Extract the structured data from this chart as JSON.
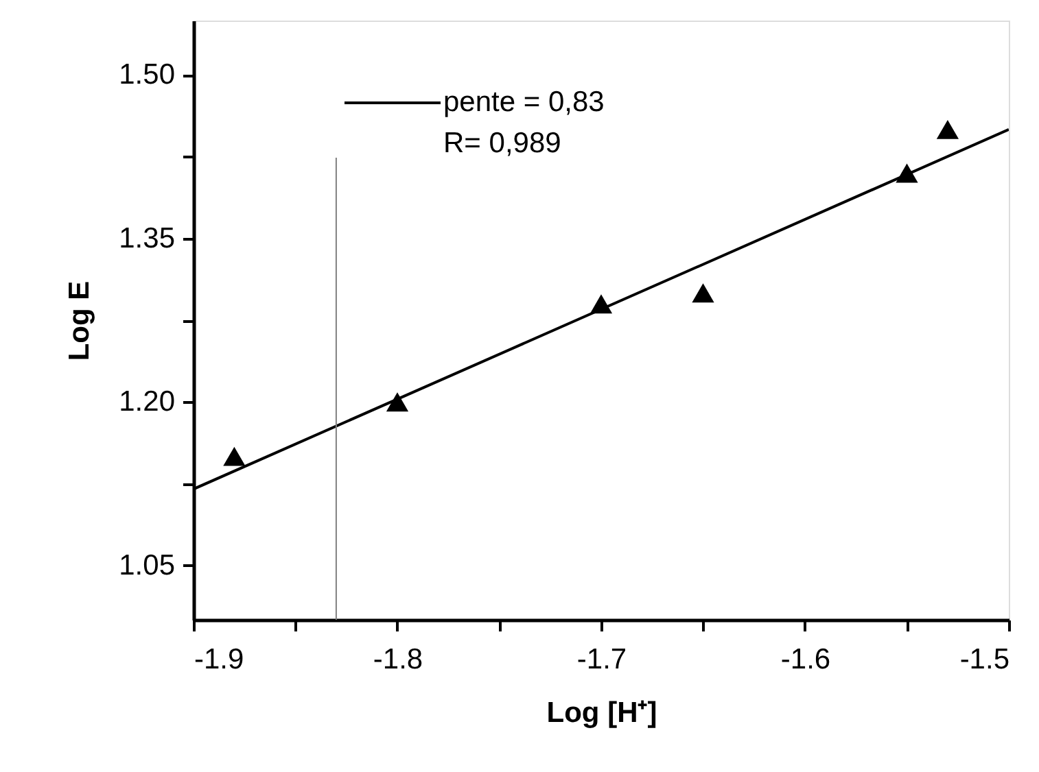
{
  "chart_data": {
    "type": "scatter",
    "xlabel": "Log [H⁺]",
    "ylabel": "Log E",
    "series": [
      {
        "color": "#000000",
        "marker": "triangle",
        "x": [
          -1.88,
          -1.8,
          -1.7,
          -1.65,
          -1.55,
          -1.53
        ],
        "values": [
          1.15,
          1.2,
          1.29,
          1.3,
          1.41,
          1.45
        ]
      },
      {
        "type": "line",
        "name": "pente = 0,83",
        "color": "#000000",
        "line_style": "solid",
        "marker": "none",
        "x": [
          -1.9,
          -1.5
        ],
        "values": [
          1.12,
          1.45
        ]
      }
    ],
    "annotations": [
      "R= 0,989"
    ],
    "ref_lines": [
      {
        "axis": "x",
        "value": -1.83,
        "label": null,
        "color": "#808080"
      }
    ],
    "xlim": [
      -1.9,
      -1.5
    ],
    "xticks": [
      -1.9,
      {
        "value": -1.85,
        "label": null
      },
      -1.8,
      {
        "value": -1.75,
        "label": null
      },
      -1.7,
      {
        "value": -1.65,
        "label": null
      },
      -1.6,
      {
        "value": -1.55,
        "label": null
      },
      -1.5
    ],
    "ylim": [
      1.0,
      1.55
    ],
    "yticks": [
      1.05,
      {
        "value": 1.125,
        "label": null
      },
      {
        "value": 1.2,
        "label": "1.20"
      },
      {
        "value": 1.275,
        "label": null
      },
      1.35,
      {
        "value": 1.425,
        "label": null
      },
      {
        "value": 1.5,
        "label": "1.50"
      }
    ],
    "grid": false,
    "legend": "top left"
  }
}
